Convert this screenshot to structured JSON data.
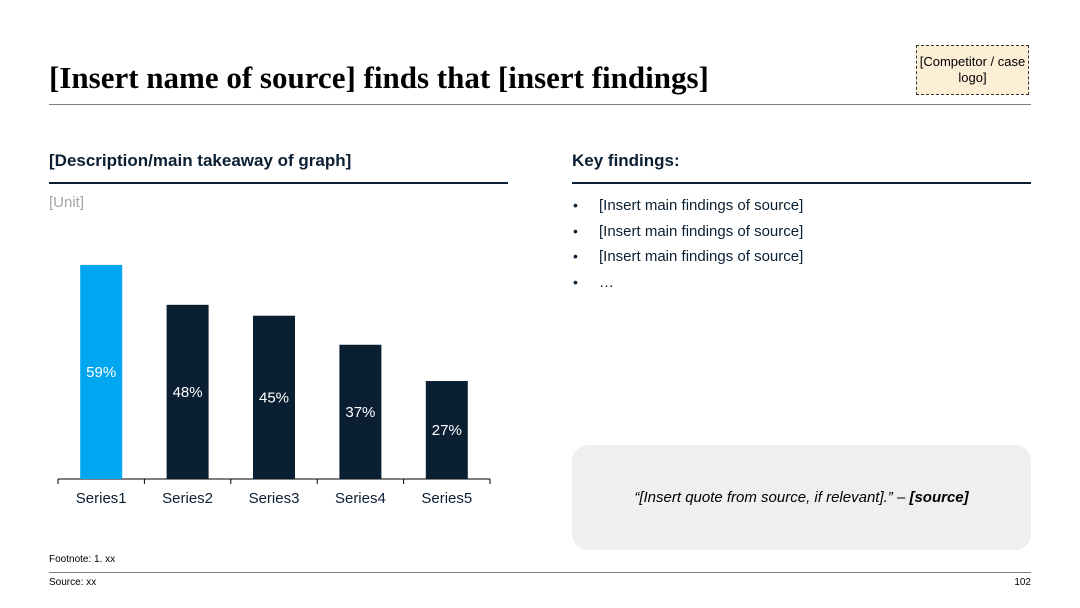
{
  "header": {
    "title": "[Insert name of source] finds that [insert findings]",
    "logo_placeholder": "[Competitor / case logo]"
  },
  "left_panel": {
    "heading": "[Description/main takeaway of graph]",
    "unit": "[Unit]"
  },
  "right_panel": {
    "heading": "Key findings:",
    "bullets": [
      "[Insert main findings of source]",
      "[Insert main findings of source]",
      "[Insert main findings of source]",
      "…"
    ],
    "quote_text": "“[Insert quote from source, if relevant].” – ",
    "quote_source": "[source]"
  },
  "footer": {
    "footnote": "Footnote: 1. xx",
    "source": "Source: xx",
    "page_number": "102"
  },
  "colors": {
    "highlight": "#00a6f0",
    "dark": "#0b1f33"
  },
  "chart_data": {
    "type": "bar",
    "categories": [
      "Series1",
      "Series2",
      "Series3",
      "Series4",
      "Series5"
    ],
    "values": [
      59,
      48,
      45,
      37,
      27
    ],
    "value_labels": [
      "59%",
      "48%",
      "45%",
      "37%",
      "27%"
    ],
    "highlight_index": 0,
    "ylim": [
      0,
      70
    ],
    "grid": false,
    "legend": "none"
  }
}
